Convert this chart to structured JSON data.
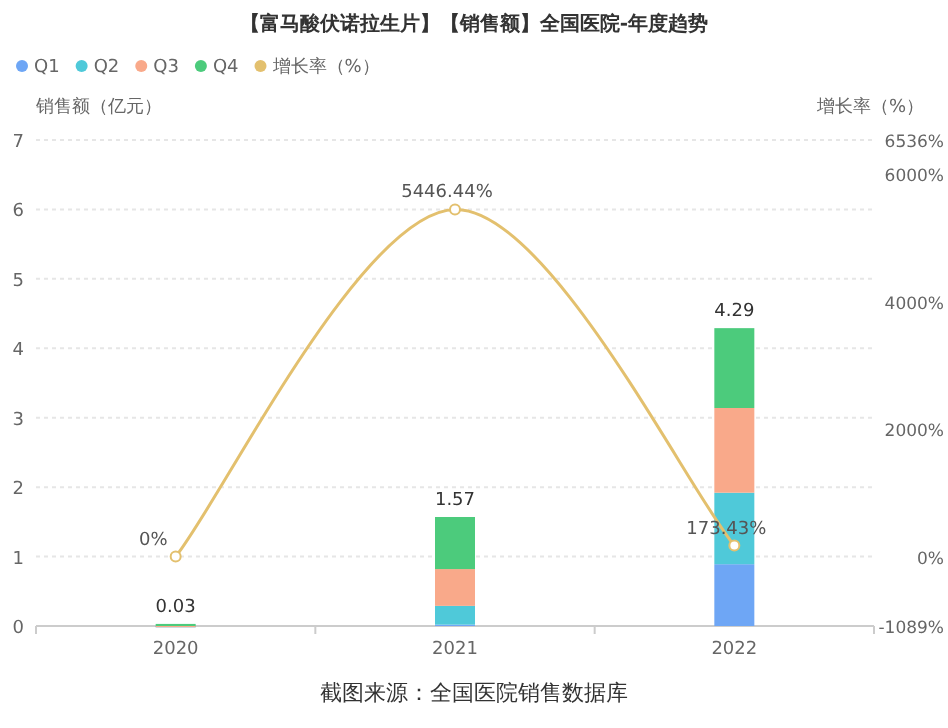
{
  "chart_data": {
    "type": "bar",
    "title": "【富马酸伏诺拉生片】【销售额】全国医院-年度趋势",
    "ylabel": "销售额（亿元）",
    "y2label": "增长率（%）",
    "categories": [
      "2020",
      "2021",
      "2022"
    ],
    "stacked": true,
    "series": [
      {
        "name": "Q1",
        "color": "#6ea6f5",
        "values": [
          0,
          0.02,
          0.89
        ]
      },
      {
        "name": "Q2",
        "color": "#4fc9d9",
        "values": [
          0,
          0.27,
          1.03
        ]
      },
      {
        "name": "Q3",
        "color": "#f9a98a",
        "values": [
          0,
          0.53,
          1.22
        ]
      },
      {
        "name": "Q4",
        "color": "#4ccb7c",
        "values": [
          0.03,
          0.75,
          1.15
        ]
      },
      {
        "name": "增长率（%）",
        "type": "line",
        "axis": "y2",
        "color": "#e3c06e",
        "marker": "circle",
        "values": [
          0,
          5446.44,
          173.43
        ],
        "value_labels": [
          "0%",
          "5446.44%",
          "173.43%"
        ]
      }
    ],
    "totals": [
      "0.03",
      "1.57",
      "4.29"
    ],
    "ylim": [
      0,
      7
    ],
    "yticks": [
      0,
      1,
      2,
      3,
      4,
      5,
      6,
      7
    ],
    "y2lim": [
      -1089,
      6536
    ],
    "y2ticks": [
      {
        "value": -1089,
        "label": "-1089%"
      },
      {
        "value": 0,
        "label": "0%"
      },
      {
        "value": 2000,
        "label": "2000%"
      },
      {
        "value": 4000,
        "label": "4000%"
      },
      {
        "value": 6000,
        "label": "6000%"
      },
      {
        "value": 6536,
        "label": "6536%"
      }
    ],
    "grid": "y",
    "legend": "top left",
    "annotations": [
      "截图来源：全国医院销售数据库"
    ]
  }
}
